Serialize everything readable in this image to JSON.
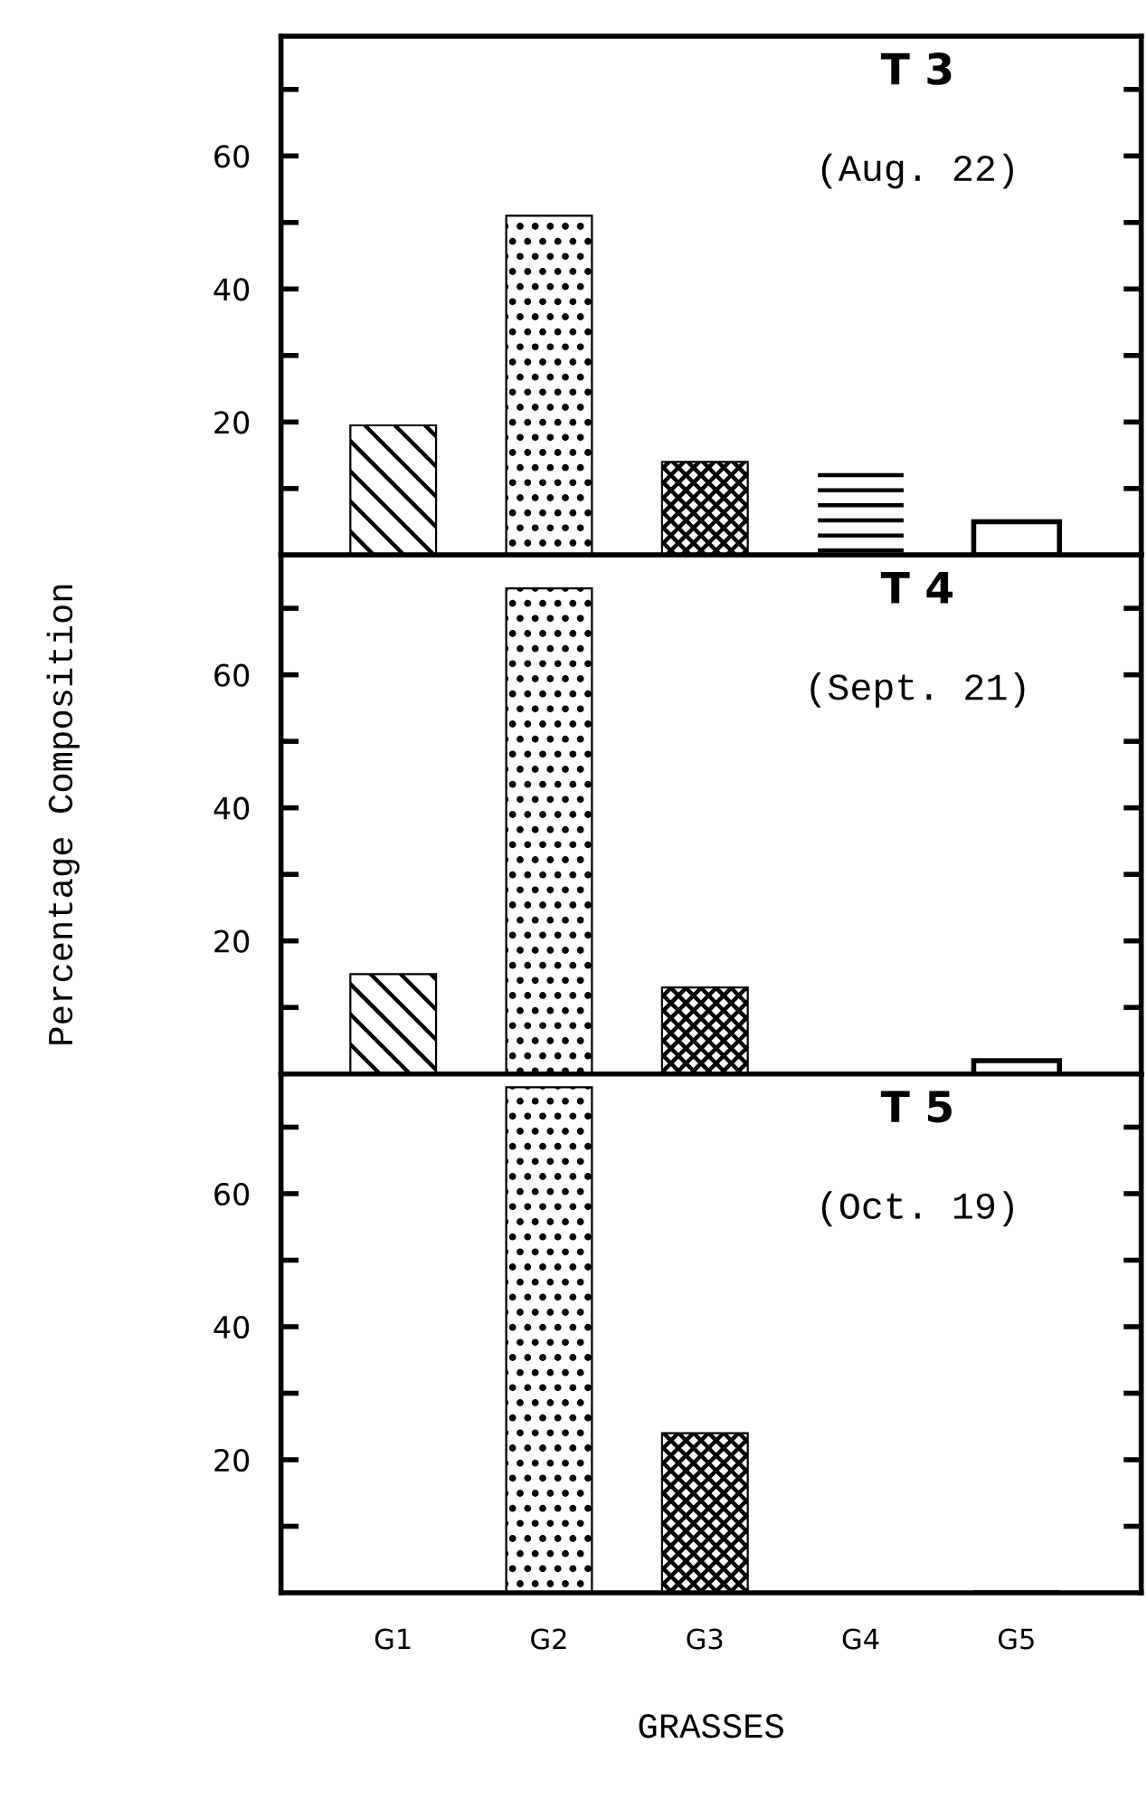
{
  "chart_data": [
    {
      "type": "bar",
      "title": "T 3",
      "subtitle": "(Aug. 22)",
      "categories": [
        null,
        null,
        null,
        null,
        null
      ],
      "values": [
        19.5,
        51,
        14,
        13,
        5
      ],
      "color": "#000000",
      "ylim": [
        0,
        78
      ],
      "yticks": [
        {
          "value": 10,
          "label": null
        },
        {
          "value": 20,
          "label": "20"
        },
        {
          "value": 30,
          "label": null
        },
        {
          "value": 40,
          "label": "40"
        },
        {
          "value": 50,
          "label": null
        },
        {
          "value": 60,
          "label": "60"
        },
        {
          "value": 70,
          "label": null
        }
      ],
      "tick_labels": "y",
      "grid": false
    },
    {
      "type": "bar",
      "title": "T 4",
      "subtitle": "(Sept. 21)",
      "ylabel": "Percentage Composition",
      "categories": [
        null,
        null,
        null,
        null,
        null
      ],
      "values": [
        15,
        73,
        13,
        0,
        2
      ],
      "color": "#000000",
      "ylim": [
        0,
        78
      ],
      "yticks": [
        {
          "value": 10,
          "label": null
        },
        {
          "value": 20,
          "label": "20"
        },
        {
          "value": 30,
          "label": null
        },
        {
          "value": 40,
          "label": "40"
        },
        {
          "value": 50,
          "label": null
        },
        {
          "value": 60,
          "label": "60"
        },
        {
          "value": 70,
          "label": null
        }
      ],
      "tick_labels": "y",
      "grid": false
    },
    {
      "type": "bar",
      "title": "T 5",
      "subtitle": "(Oct. 19)",
      "xlabel": "GRASSES",
      "categories": [
        "G1",
        "G2",
        "G3",
        "G4",
        "G5"
      ],
      "values": [
        0,
        76,
        24,
        0,
        0
      ],
      "color": "#000000",
      "ylim": [
        0,
        78
      ],
      "yticks": [
        {
          "value": 10,
          "label": null
        },
        {
          "value": 20,
          "label": "20"
        },
        {
          "value": 30,
          "label": null
        },
        {
          "value": 40,
          "label": "40"
        },
        {
          "value": 50,
          "label": null
        },
        {
          "value": 60,
          "label": "60"
        },
        {
          "value": 70,
          "label": null
        }
      ],
      "grid": false
    }
  ]
}
